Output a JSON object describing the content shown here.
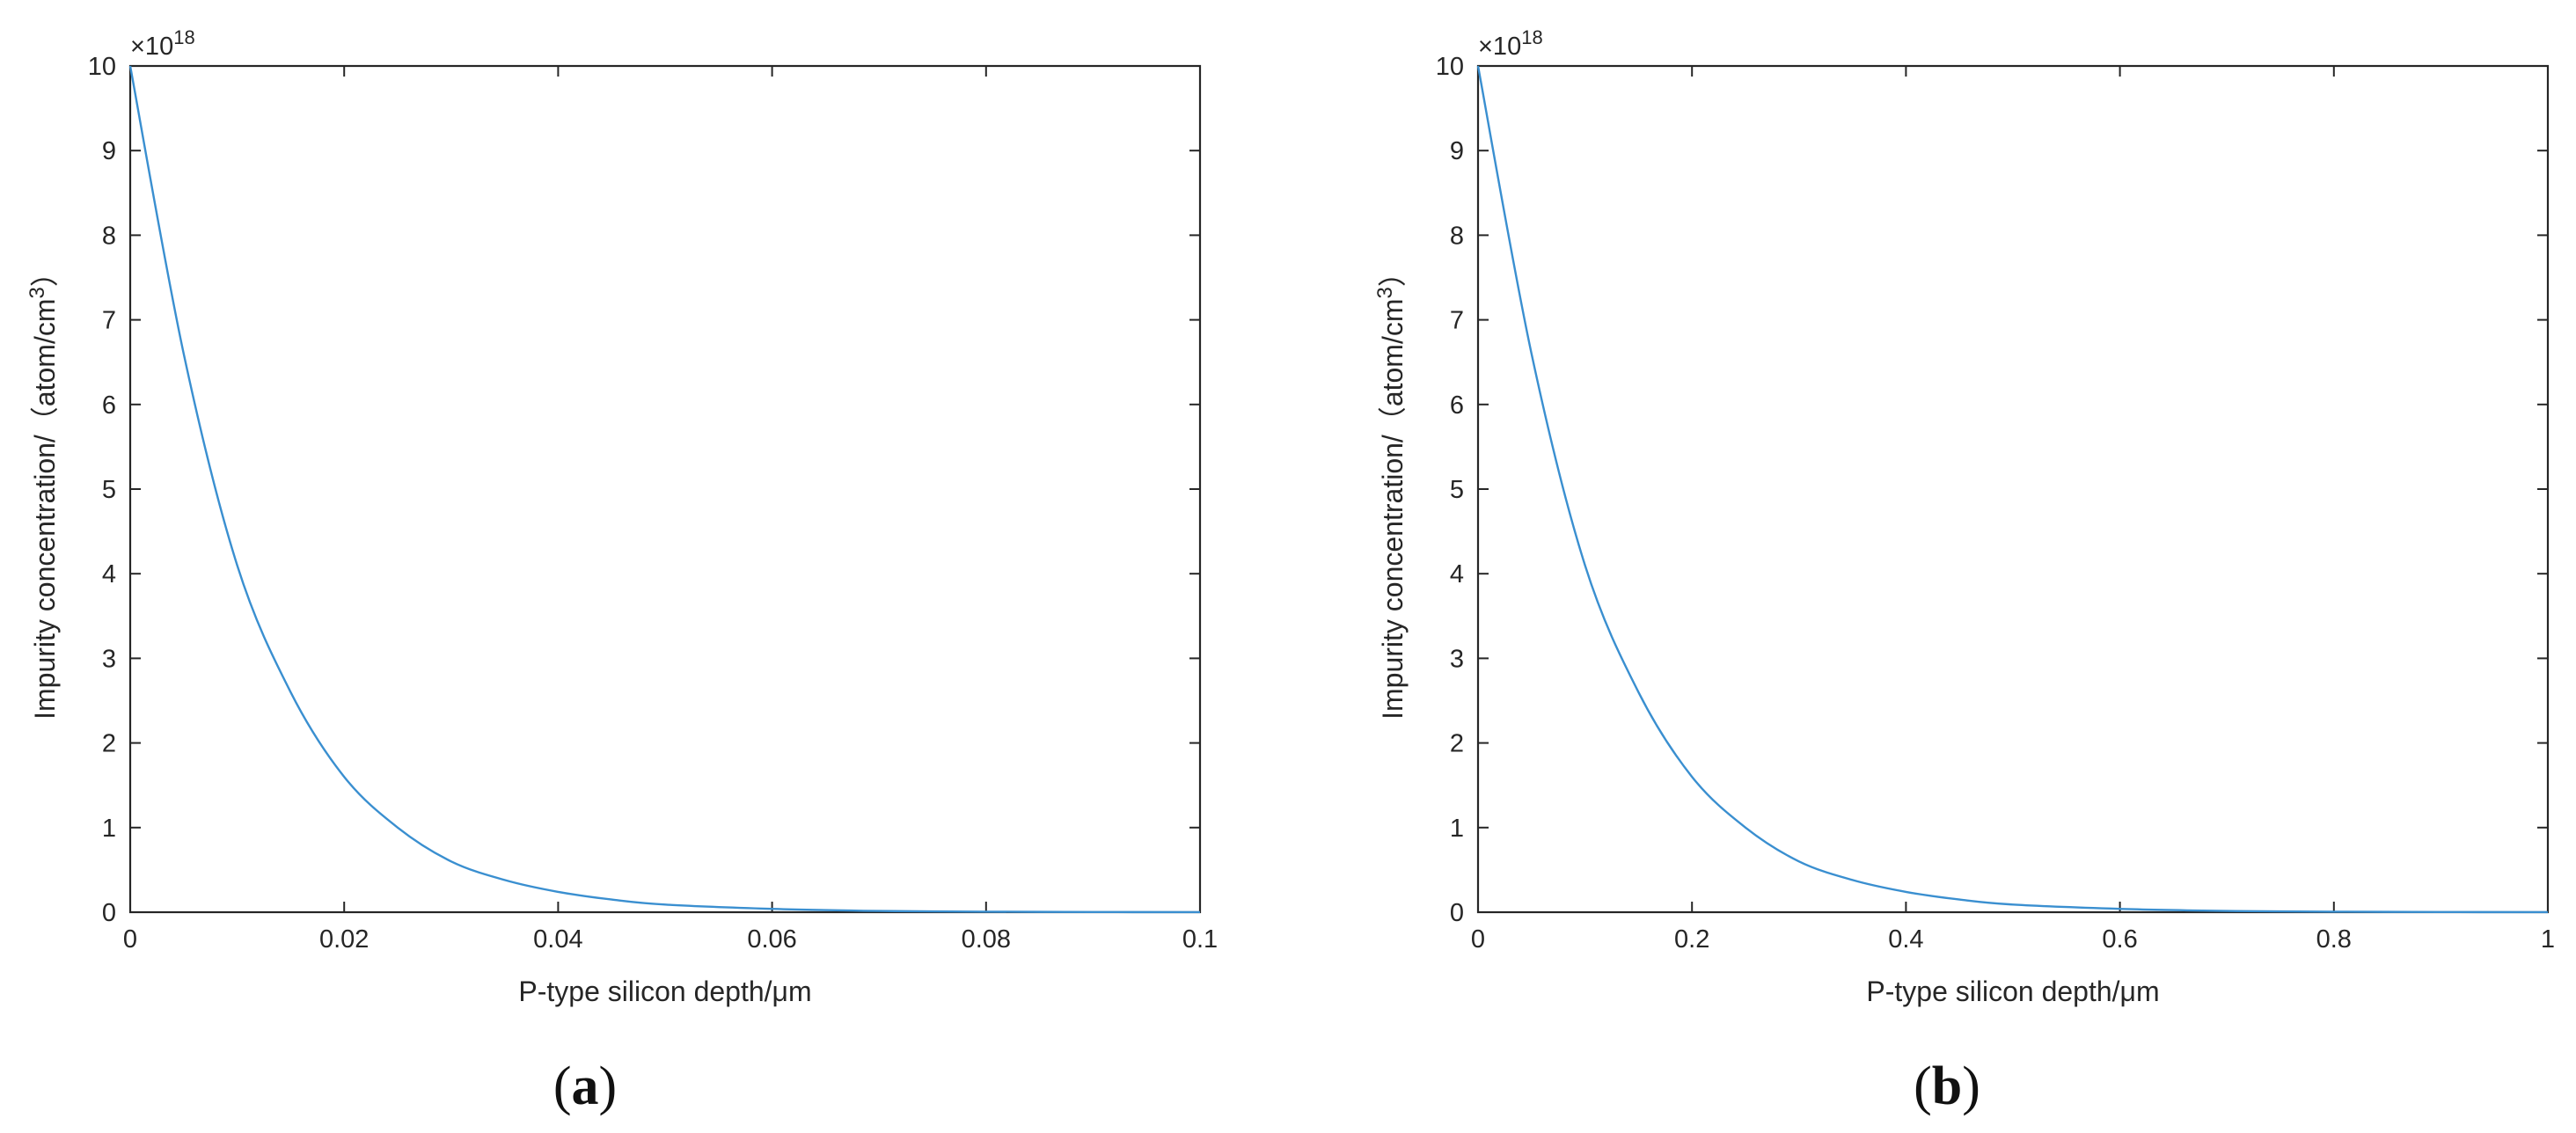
{
  "chart_data": [
    {
      "type": "line",
      "panel": "a",
      "xlabel": "P-type silicon depth/μm",
      "ylabel": "Impurity concentration/（atom/cm",
      "ylabel_sup": "3",
      "ylabel_close": "）",
      "exponent_prefix": "×10",
      "exponent_power": "18",
      "xlim": [
        0,
        0.1
      ],
      "ylim": [
        0,
        10
      ],
      "xticks": [
        "0",
        "0.02",
        "0.04",
        "0.06",
        "0.08",
        "0.1"
      ],
      "yticks": [
        "0",
        "1",
        "2",
        "3",
        "4",
        "5",
        "6",
        "7",
        "8",
        "9",
        "10"
      ],
      "grid": false,
      "series": [
        {
          "color": "#3a8fd0",
          "x": [
            0,
            0.005,
            0.01,
            0.015,
            0.02,
            0.025,
            0.03,
            0.035,
            0.04,
            0.045,
            0.05,
            0.06,
            0.07,
            0.08,
            0.09,
            0.1
          ],
          "y": [
            10,
            6.6,
            4.1,
            2.6,
            1.6,
            1.0,
            0.6,
            0.38,
            0.24,
            0.15,
            0.09,
            0.04,
            0.015,
            0.006,
            0.002,
            0.001
          ]
        }
      ]
    },
    {
      "type": "line",
      "panel": "b",
      "xlabel": "P-type silicon depth/μm",
      "ylabel": "Impurity concentration/（atom/cm",
      "ylabel_sup": "3",
      "ylabel_close": "）",
      "exponent_prefix": "×10",
      "exponent_power": "18",
      "xlim": [
        0,
        1
      ],
      "ylim": [
        0,
        10
      ],
      "xticks": [
        "0",
        "0.2",
        "0.4",
        "0.6",
        "0.8",
        "1"
      ],
      "yticks": [
        "0",
        "1",
        "2",
        "3",
        "4",
        "5",
        "6",
        "7",
        "8",
        "9",
        "10"
      ],
      "grid": false,
      "series": [
        {
          "color": "#3a8fd0",
          "x": [
            0,
            0.05,
            0.1,
            0.15,
            0.2,
            0.25,
            0.3,
            0.35,
            0.4,
            0.45,
            0.5,
            0.6,
            0.7,
            0.8,
            0.9,
            1.0
          ],
          "y": [
            10,
            6.6,
            4.1,
            2.6,
            1.6,
            1.0,
            0.6,
            0.38,
            0.24,
            0.15,
            0.09,
            0.04,
            0.015,
            0.006,
            0.002,
            0.001
          ]
        }
      ]
    }
  ],
  "panel_labels": [
    {
      "open": "(",
      "letter": "a",
      "close": ")"
    },
    {
      "open": "(",
      "letter": "b",
      "close": ")"
    }
  ]
}
